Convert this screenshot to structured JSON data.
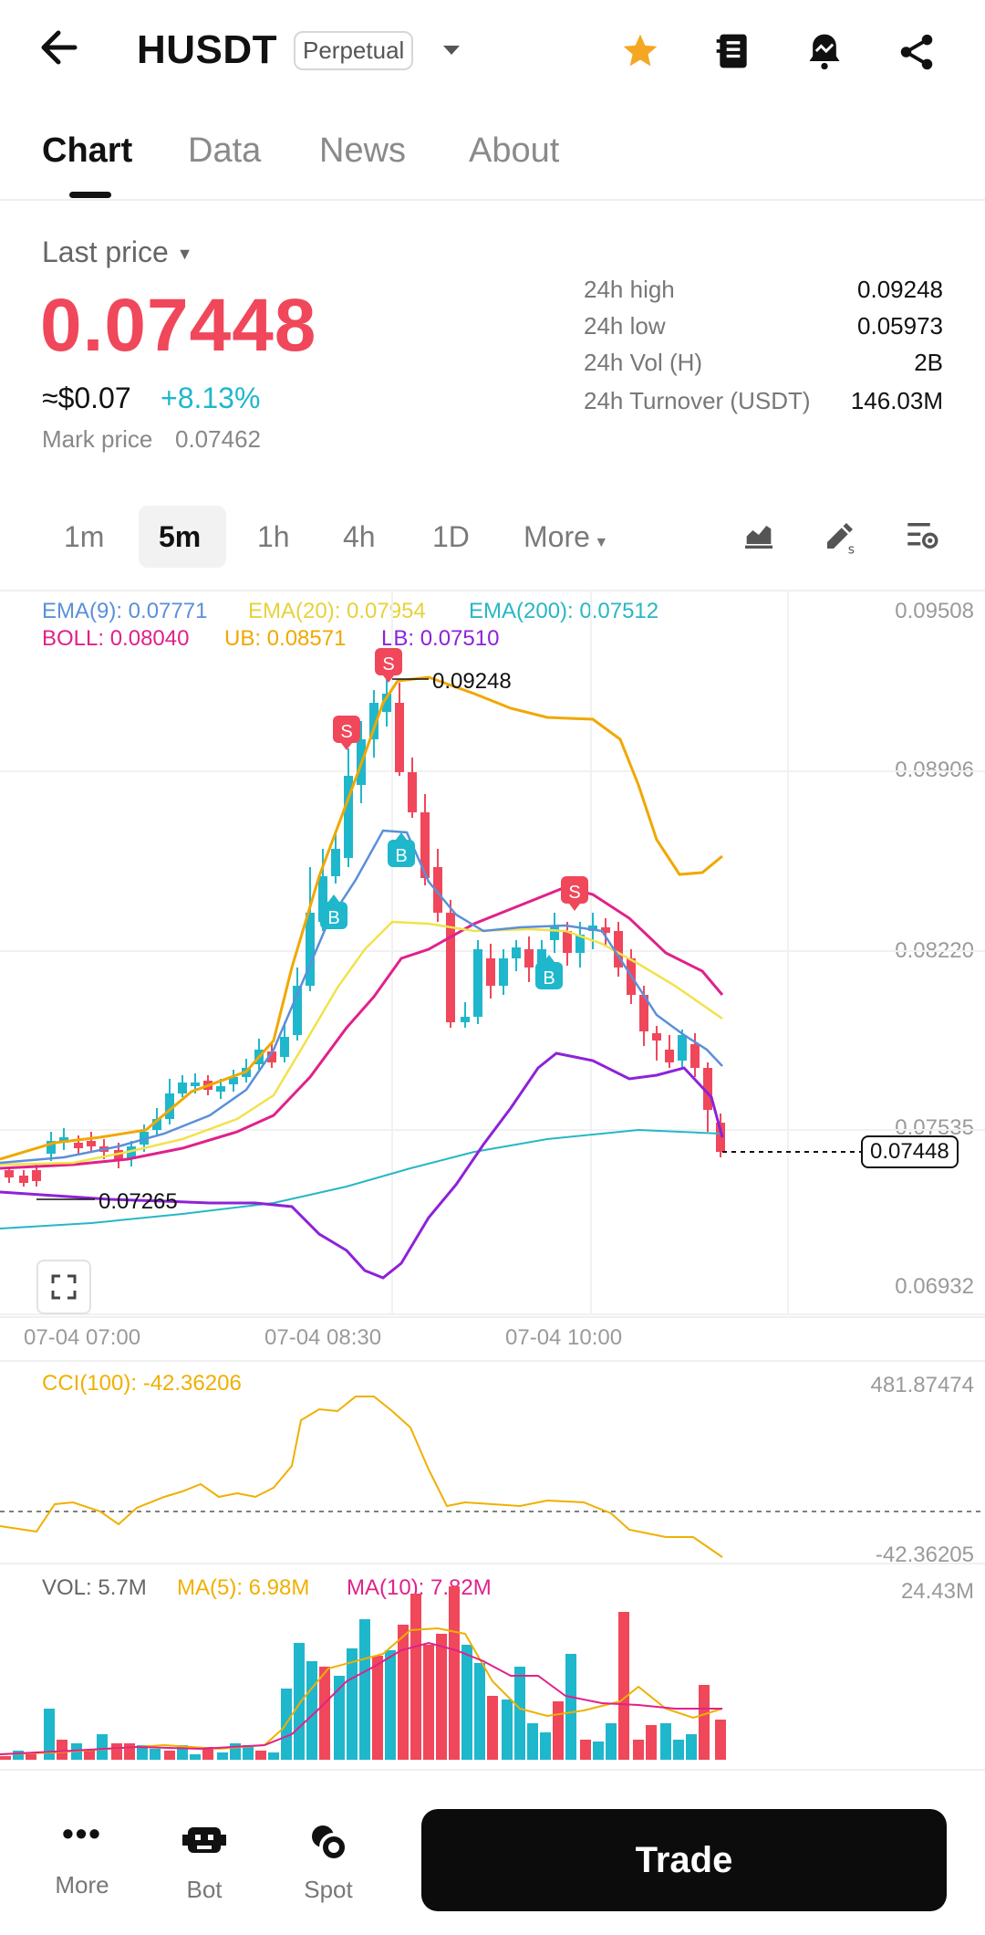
{
  "header": {
    "title": "HUSDT",
    "badge": "Perpetual"
  },
  "tabs": [
    "Chart",
    "Data",
    "News",
    "About"
  ],
  "price": {
    "label": "Last price",
    "value": "0.07448",
    "usd": "≈$0.07",
    "change": "+8.13%",
    "mark_label": "Mark price",
    "mark_value": "0.07462"
  },
  "stats": [
    {
      "label": "24h high",
      "value": "0.09248"
    },
    {
      "label": "24h low",
      "value": "0.05973"
    },
    {
      "label": "24h Vol (H)",
      "value": "2B"
    },
    {
      "label": "24h Turnover (USDT)",
      "value": "146.03M"
    }
  ],
  "timeframes": [
    "1m",
    "5m",
    "1h",
    "4h",
    "1D",
    "More"
  ],
  "indicators": {
    "ema9": "EMA(9): 0.07771",
    "ema20": "EMA(20): 0.07954",
    "ema200": "EMA(200): 0.07512",
    "boll": "BOLL: 0.08040",
    "ub": "UB: 0.08571",
    "lb": "LB: 0.07510"
  },
  "price_axis": [
    "0.09508",
    "0.08906",
    "0.08220",
    "0.07535",
    "0.06932"
  ],
  "annotations": {
    "high": "0.09248",
    "low": "0.07265",
    "current": "0.07448"
  },
  "time_axis": [
    "07-04 07:00",
    "07-04 08:30",
    "07-04 10:00"
  ],
  "cci": {
    "label": "CCI(100): -42.36206",
    "top": "481.87474",
    "bottom": "-42.36205"
  },
  "vol": {
    "label": "VOL: 5.7M",
    "ma5": "MA(5): 6.98M",
    "ma10": "MA(10): 7.82M",
    "top": "24.43M"
  },
  "bottom_nav": {
    "more": "More",
    "bot": "Bot",
    "spot": "Spot",
    "trade": "Trade"
  },
  "colors": {
    "up": "#1fb7cc",
    "down": "#f0475b",
    "ema9": "#5b8fd9",
    "ema20": "#f2e24b",
    "ema200": "#27b7c4",
    "boll": "#e0218a",
    "ub": "#f0a800",
    "lb": "#8e22d8",
    "cci": "#f0b000"
  },
  "chart_data": {
    "type": "candlestick",
    "marker_labels": [
      "S",
      "S",
      "S",
      "B",
      "B",
      "B"
    ]
  }
}
